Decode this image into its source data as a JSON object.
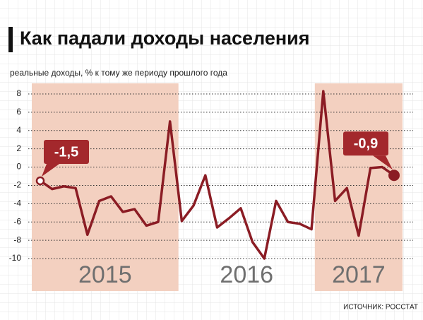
{
  "chart_data": {
    "type": "line",
    "title": "Как падали доходы населения",
    "y_label": "реальные доходы, % к тому же периоду прошлого года",
    "source": "ИСТОЧНИК: РОССТАТ",
    "year_labels": [
      "2015",
      "2016",
      "2017"
    ],
    "categories": [
      null,
      null,
      null,
      null,
      null,
      null,
      null,
      null,
      null,
      null,
      null,
      null,
      null,
      null,
      null,
      null,
      null,
      null,
      null,
      null,
      null,
      null,
      null,
      null,
      null,
      null,
      null,
      null,
      null,
      null,
      null
    ],
    "series": [
      {
        "color": "#8b1c24",
        "values": [
          -1.5,
          -2.4,
          -2.1,
          -2.3,
          -7.4,
          -3.7,
          -3.2,
          -4.9,
          -4.6,
          -6.4,
          -6.0,
          5.0,
          -5.9,
          -4.2,
          -0.9,
          -6.6,
          -5.6,
          -4.5,
          -8.2,
          -10.0,
          -3.7,
          -6.0,
          -6.2,
          -6.8,
          8.3,
          -3.7,
          -2.3,
          -7.5,
          -0.1,
          0.0,
          -0.9
        ],
        "value_labels": [
          "-1,5",
          null,
          null,
          null,
          null,
          null,
          null,
          null,
          null,
          null,
          null,
          null,
          null,
          null,
          null,
          null,
          null,
          null,
          null,
          null,
          null,
          null,
          null,
          null,
          null,
          null,
          null,
          null,
          null,
          null,
          "-0,9"
        ]
      }
    ],
    "ylim": [
      -10,
      8
    ],
    "yticks": [
      -10,
      -8,
      -6,
      -4,
      -2,
      0,
      2,
      4,
      6,
      8
    ],
    "grid": true,
    "shade_color": "#f3d0c0",
    "label_color": "#a3282c"
  }
}
